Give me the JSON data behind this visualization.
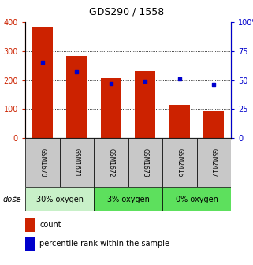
{
  "title": "GDS290 / 1558",
  "samples": [
    "GSM1670",
    "GSM1671",
    "GSM1672",
    "GSM1673",
    "GSM2416",
    "GSM2417"
  ],
  "counts": [
    385,
    282,
    207,
    232,
    113,
    93
  ],
  "percentile_ranks": [
    65,
    57,
    47,
    49,
    51,
    46
  ],
  "bar_color": "#cc2200",
  "dot_color": "#0000cc",
  "left_axis_color": "#cc2200",
  "right_axis_color": "#0000cc",
  "ylim_left": [
    0,
    400
  ],
  "ylim_right": [
    0,
    100
  ],
  "left_ticks": [
    0,
    100,
    200,
    300,
    400
  ],
  "right_ticks": [
    0,
    25,
    50,
    75,
    100
  ],
  "sample_box_color": "#c8c8c8",
  "group_colors": [
    "#c8f0c8",
    "#5de05d",
    "#5de05d"
  ],
  "group_labels": [
    "30% oxygen",
    "3% oxygen",
    "0% oxygen"
  ],
  "group_ranges": [
    [
      0,
      2
    ],
    [
      2,
      4
    ],
    [
      4,
      6
    ]
  ],
  "dose_label": "dose",
  "legend_count_label": "count",
  "legend_pct_label": "percentile rank within the sample"
}
